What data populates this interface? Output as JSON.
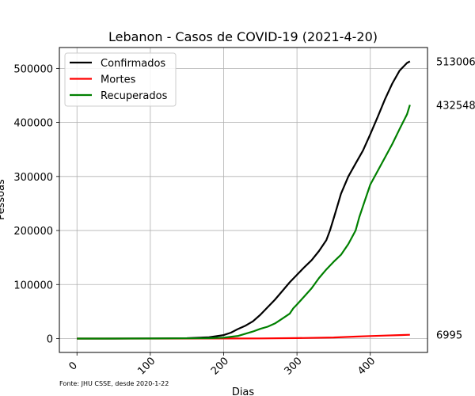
{
  "chart_data": {
    "type": "line",
    "title": "Lebanon - Casos de COVID-19 (2021-4-20)",
    "xlabel": "Dias",
    "ylabel": "Pessoas",
    "xlim": [
      -24,
      478
    ],
    "ylim": [
      -25650,
      538650
    ],
    "x_ticks": [
      0,
      100,
      200,
      300,
      400
    ],
    "y_ticks": [
      0,
      100000,
      200000,
      300000,
      400000,
      500000
    ],
    "grid": true,
    "legend_position": "top-left",
    "source_note": "Fonte: JHU CSSE, desde 2020-1-22",
    "series": [
      {
        "name": "Confirmados",
        "color": "#000000",
        "end_label": "513006",
        "points": [
          [
            0,
            0
          ],
          [
            50,
            0
          ],
          [
            100,
            300
          ],
          [
            150,
            800
          ],
          [
            180,
            2500
          ],
          [
            200,
            6500
          ],
          [
            210,
            11000
          ],
          [
            220,
            18000
          ],
          [
            230,
            24000
          ],
          [
            240,
            32000
          ],
          [
            250,
            44000
          ],
          [
            260,
            58000
          ],
          [
            270,
            72000
          ],
          [
            280,
            88000
          ],
          [
            290,
            104000
          ],
          [
            300,
            118000
          ],
          [
            310,
            132000
          ],
          [
            320,
            145000
          ],
          [
            330,
            162000
          ],
          [
            340,
            182000
          ],
          [
            345,
            200000
          ],
          [
            350,
            222000
          ],
          [
            355,
            245000
          ],
          [
            360,
            268000
          ],
          [
            370,
            300000
          ],
          [
            380,
            324000
          ],
          [
            390,
            348000
          ],
          [
            400,
            378000
          ],
          [
            410,
            410000
          ],
          [
            420,
            443000
          ],
          [
            430,
            472000
          ],
          [
            440,
            496000
          ],
          [
            450,
            510000
          ],
          [
            454,
            513006
          ]
        ]
      },
      {
        "name": "Mortes",
        "color": "#ff0000",
        "end_label": "6995",
        "points": [
          [
            0,
            0
          ],
          [
            100,
            40
          ],
          [
            200,
            150
          ],
          [
            250,
            350
          ],
          [
            300,
            900
          ],
          [
            350,
            2000
          ],
          [
            380,
            3600
          ],
          [
            400,
            4700
          ],
          [
            420,
            5600
          ],
          [
            440,
            6400
          ],
          [
            454,
            6995
          ]
        ]
      },
      {
        "name": "Recuperados",
        "color": "#008000",
        "end_label": "432548",
        "points": [
          [
            0,
            0
          ],
          [
            100,
            100
          ],
          [
            180,
            700
          ],
          [
            200,
            1800
          ],
          [
            220,
            5000
          ],
          [
            240,
            13000
          ],
          [
            250,
            18000
          ],
          [
            260,
            22000
          ],
          [
            270,
            28000
          ],
          [
            280,
            37000
          ],
          [
            290,
            46000
          ],
          [
            295,
            56000
          ],
          [
            300,
            63000
          ],
          [
            310,
            78000
          ],
          [
            320,
            93000
          ],
          [
            330,
            112000
          ],
          [
            340,
            128000
          ],
          [
            350,
            142000
          ],
          [
            360,
            155000
          ],
          [
            370,
            175000
          ],
          [
            380,
            200000
          ],
          [
            385,
            225000
          ],
          [
            390,
            245000
          ],
          [
            400,
            285000
          ],
          [
            410,
            310000
          ],
          [
            420,
            335000
          ],
          [
            430,
            360000
          ],
          [
            440,
            388000
          ],
          [
            450,
            415000
          ],
          [
            454,
            432548
          ]
        ]
      }
    ]
  }
}
